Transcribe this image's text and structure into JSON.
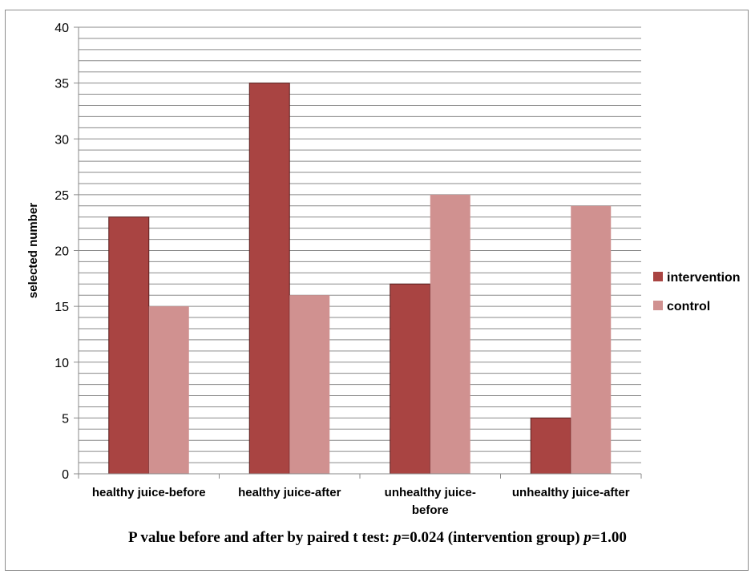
{
  "chart_data": {
    "type": "bar",
    "categories": [
      "healthy juice-before",
      "healthy juice-after",
      "unhealthy juice-before",
      "unhealthy juice-after"
    ],
    "category_lines": [
      [
        "healthy juice-before"
      ],
      [
        "healthy juice-after"
      ],
      [
        "unhealthy juice-",
        "before"
      ],
      [
        "unhealthy juice-after"
      ]
    ],
    "series": [
      {
        "name": "intervention",
        "values": [
          23,
          35,
          17,
          5
        ],
        "color": "#a94442"
      },
      {
        "name": "control",
        "values": [
          15,
          16,
          25,
          24
        ],
        "color": "#d09190"
      }
    ],
    "ylabel": "selected number",
    "ylim": [
      0,
      40
    ],
    "yticks": [
      0,
      5,
      10,
      15,
      20,
      25,
      30,
      35,
      40
    ],
    "minor_gridline_step": 1,
    "grid": true,
    "legend_position": "right"
  },
  "footnote": {
    "prefix": "P value before and after by paired t test: ",
    "p_symbol": "p",
    "intervention_value": "=0.024 (intervention group) ",
    "control_value": "=1.00"
  }
}
